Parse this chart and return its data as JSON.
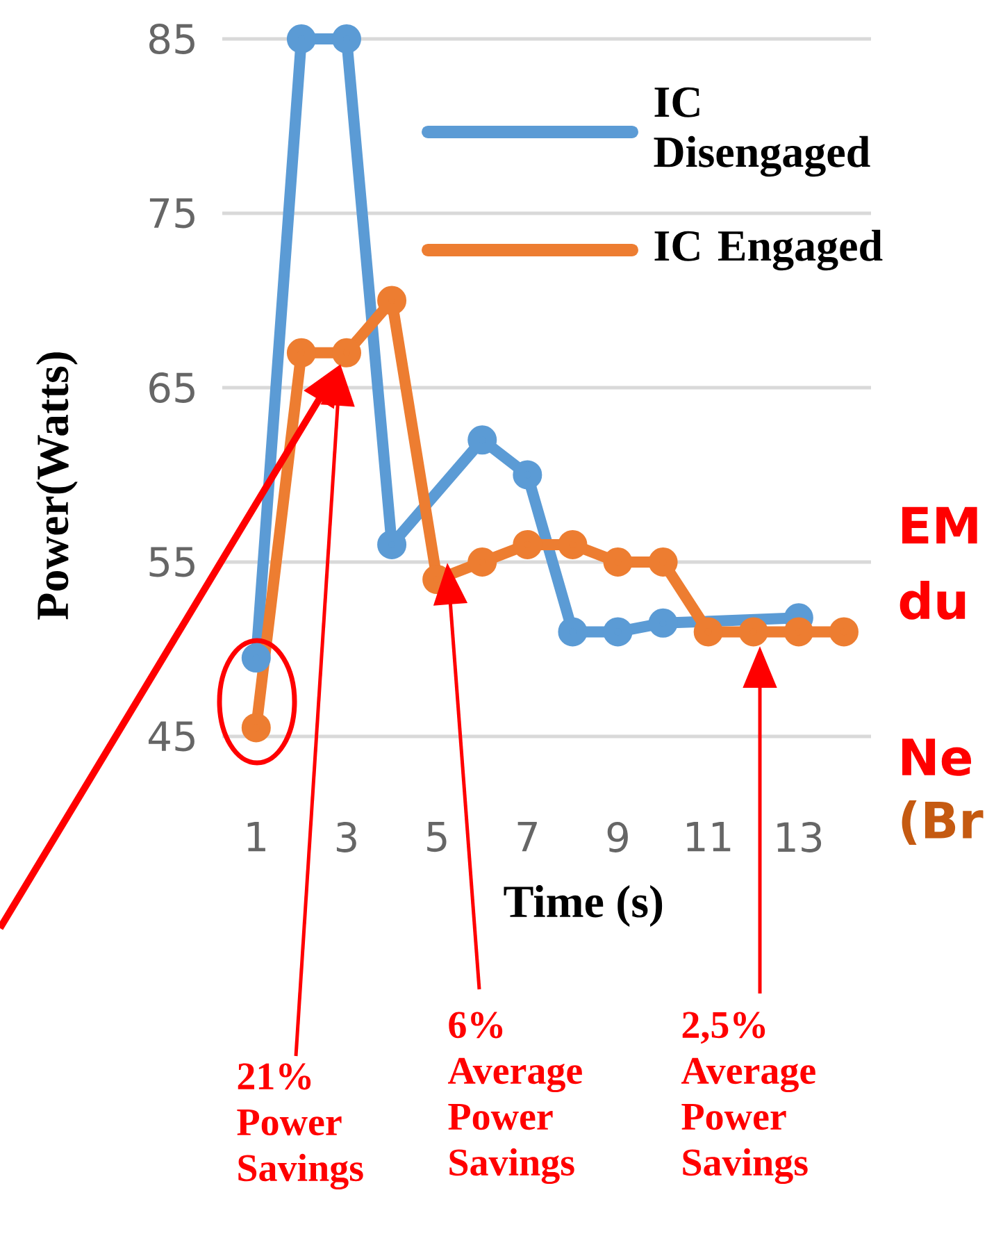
{
  "chart_data": {
    "type": "line",
    "xlabel": "Time (s)",
    "ylabel": "Power(Watts)",
    "x": [
      1,
      2,
      3,
      4,
      5,
      6,
      7,
      8,
      9,
      10,
      11,
      12,
      13,
      14
    ],
    "series": [
      {
        "name": "IC Disengaged",
        "color": "#5b9bd5",
        "values": [
          49.5,
          85,
          85,
          56,
          null,
          62,
          60,
          51,
          51,
          51.5,
          null,
          null,
          51.8,
          null
        ]
      },
      {
        "name": "IC Engaged",
        "color": "#ed7d31",
        "values": [
          45.5,
          67,
          67,
          70,
          54,
          55,
          56,
          56,
          55,
          55,
          51,
          51,
          51,
          51
        ]
      }
    ],
    "xlim": [
      0.25,
      14.6
    ],
    "ylim": [
      45,
      85
    ],
    "xticks": [
      1,
      3,
      5,
      7,
      9,
      11,
      13
    ],
    "yticks": [
      45,
      55,
      65,
      75,
      85
    ],
    "grid": "y",
    "legend": "top right",
    "marker": "circle",
    "line_style": "solid",
    "annotations": [
      "21% Power Savings",
      "6% Average Power Savings",
      "2,5% Average Power Savings",
      "EM",
      "du",
      "Ne",
      "(Br"
    ]
  }
}
